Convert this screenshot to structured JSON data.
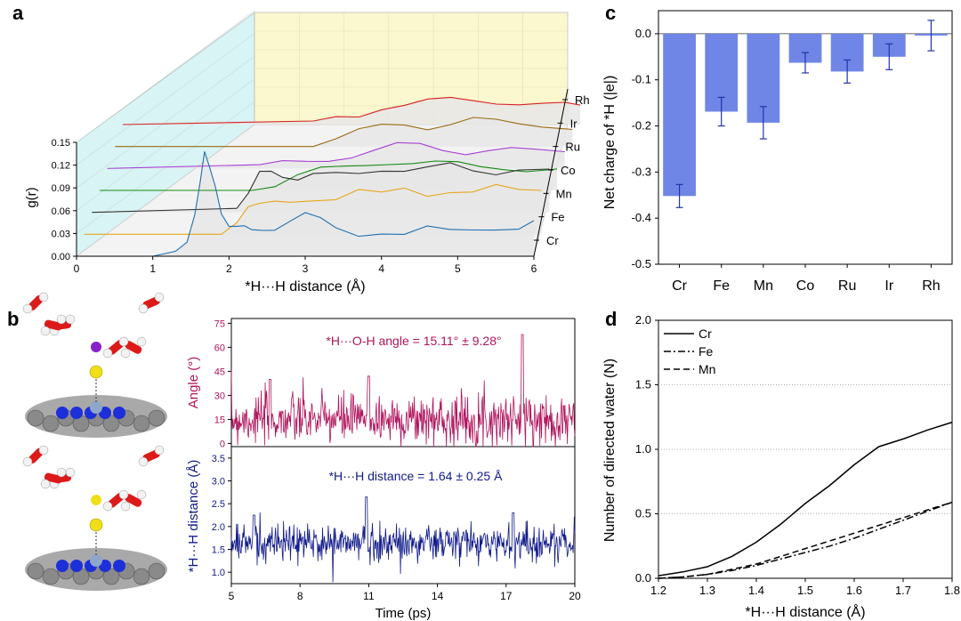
{
  "panel_letters": {
    "a": "a",
    "b": "b",
    "c": "c",
    "d": "d"
  },
  "colors": {
    "Cr": "#1f6fb0",
    "Fe": "#e6a61c",
    "Mn": "#333333",
    "Co": "#138a13",
    "Ru": "#a83fd6",
    "Ir": "#9a6a10",
    "Rh": "#d81f1f",
    "bar": "#6f86e6",
    "angle": "#b0145c",
    "hh": "#101a8a",
    "wall_side": "#d8f4f4",
    "wall_back": "#fbf7cf"
  },
  "chart_data": [
    {
      "id": "a",
      "type": "line",
      "ylabel": "g(r)",
      "xlabel": "*H···H distance (Å)",
      "x_ticks": [
        "0",
        "1",
        "2",
        "3",
        "4",
        "5",
        "6"
      ],
      "y_ticks": [
        "0.00",
        "0.03",
        "0.06",
        "0.09",
        "0.12",
        "0.15"
      ],
      "xlim": [
        0,
        6
      ],
      "ylim": [
        0,
        0.15
      ],
      "depth_categories": [
        "Cr",
        "Fe",
        "Mn",
        "Co",
        "Ru",
        "Ir",
        "Rh"
      ],
      "series": [
        {
          "name": "Cr",
          "x": [
            0,
            1.0,
            1.3,
            1.45,
            1.55,
            1.62,
            1.68,
            1.75,
            1.82,
            1.9,
            2.0,
            2.1,
            2.2,
            2.3,
            2.45,
            2.6,
            2.8,
            3.0,
            3.2,
            3.4,
            3.7,
            4.0,
            4.3,
            4.6,
            4.9,
            5.2,
            5.5,
            5.8,
            6.0
          ],
          "y": [
            0,
            0,
            0.002,
            0.02,
            0.06,
            0.1,
            0.135,
            0.11,
            0.09,
            0.06,
            0.045,
            0.04,
            0.035,
            0.03,
            0.035,
            0.04,
            0.05,
            0.055,
            0.045,
            0.035,
            0.03,
            0.035,
            0.03,
            0.035,
            0.03,
            0.035,
            0.04,
            0.04,
            0.045
          ]
        },
        {
          "name": "Fe",
          "x": [
            0,
            1.8,
            2.0,
            2.15,
            2.3,
            2.5,
            2.7,
            3.0,
            3.3,
            3.6,
            3.9,
            4.2,
            4.5,
            4.8,
            5.1,
            5.4,
            5.7,
            6.0
          ],
          "y": [
            0,
            0,
            0.02,
            0.035,
            0.035,
            0.04,
            0.045,
            0.05,
            0.048,
            0.055,
            0.05,
            0.06,
            0.055,
            0.06,
            0.055,
            0.06,
            0.055,
            0.06
          ]
        },
        {
          "name": "Mn",
          "x": [
            0,
            1.9,
            2.05,
            2.2,
            2.35,
            2.5,
            2.7,
            2.9,
            3.2,
            3.5,
            3.8,
            4.1,
            4.4,
            4.7,
            5.0,
            5.3,
            5.6,
            6.0
          ],
          "y": [
            0,
            0,
            0.02,
            0.055,
            0.06,
            0.05,
            0.04,
            0.045,
            0.05,
            0.055,
            0.06,
            0.055,
            0.055,
            0.06,
            0.055,
            0.055,
            0.06,
            0.055
          ]
        },
        {
          "name": "Co",
          "x": [
            0,
            2.0,
            2.3,
            2.6,
            2.9,
            3.2,
            3.5,
            3.8,
            4.1,
            4.4,
            4.7,
            5.0,
            5.3,
            5.6,
            6.0
          ],
          "y": [
            0,
            0,
            0.01,
            0.02,
            0.025,
            0.028,
            0.035,
            0.04,
            0.038,
            0.035,
            0.032,
            0.03,
            0.032,
            0.03,
            0.028
          ]
        },
        {
          "name": "Ru",
          "x": [
            0,
            2.0,
            2.3,
            2.6,
            2.9,
            3.2,
            3.5,
            3.8,
            4.1,
            4.4,
            4.7,
            5.0,
            5.3,
            5.6,
            6.0
          ],
          "y": [
            0,
            0,
            0.005,
            0.01,
            0.015,
            0.018,
            0.022,
            0.028,
            0.03,
            0.027,
            0.024,
            0.025,
            0.023,
            0.02,
            0.022
          ]
        },
        {
          "name": "Ir",
          "x": [
            0,
            2.3,
            2.6,
            2.9,
            3.2,
            3.5,
            3.8,
            4.1,
            4.4,
            4.7,
            5.0,
            5.3,
            5.6,
            6.0
          ],
          "y": [
            0,
            0,
            0.005,
            0.01,
            0.018,
            0.025,
            0.03,
            0.028,
            0.032,
            0.035,
            0.03,
            0.028,
            0.03,
            0.028
          ]
        },
        {
          "name": "Rh",
          "x": [
            0,
            2.5,
            2.8,
            3.1,
            3.4,
            3.7,
            4.0,
            4.3,
            4.6,
            4.9,
            5.2,
            5.5,
            5.8,
            6.0
          ],
          "y": [
            0,
            0,
            0.005,
            0.01,
            0.025,
            0.03,
            0.032,
            0.03,
            0.028,
            0.03,
            0.032,
            0.03,
            0.025,
            0.02
          ]
        }
      ]
    },
    {
      "id": "b_angle",
      "type": "line",
      "ylabel": "Angle (°)",
      "annotation": "*H···O-H angle = 15.11° ± 9.28°",
      "ylim": [
        -2,
        78
      ],
      "y_ticks": [
        "0",
        "15",
        "30",
        "45",
        "60",
        "75"
      ],
      "xlim": [
        5,
        20
      ],
      "mean": 15.11,
      "std": 9.28,
      "peaks": [
        {
          "x": 17.7,
          "y": 68
        },
        {
          "x": 11.0,
          "y": 42
        },
        {
          "x": 6.7,
          "y": 40
        }
      ],
      "n_points": 600
    },
    {
      "id": "b_distance",
      "type": "line",
      "ylabel": "*H···H distance (Å)",
      "xlabel": "Time (ps)",
      "annotation": "*H···H distance = 1.64 ± 0.25 Å",
      "ylim": [
        0.75,
        3.75
      ],
      "y_ticks": [
        "1.0",
        "1.5",
        "2.0",
        "2.5",
        "3.0",
        "3.5"
      ],
      "x_ticks": [
        "5",
        "8",
        "11",
        "14",
        "17",
        "20"
      ],
      "xlim": [
        5,
        20
      ],
      "mean": 1.64,
      "std": 0.25,
      "peaks": [
        {
          "x": 10.9,
          "y": 2.65
        },
        {
          "x": 6.0,
          "y": 2.25
        },
        {
          "x": 17.3,
          "y": 2.3
        }
      ],
      "n_points": 600
    },
    {
      "id": "c",
      "type": "bar",
      "ylabel": "Net charge of *H (|e|)",
      "categories": [
        "Cr",
        "Fe",
        "Mn",
        "Co",
        "Ru",
        "Ir",
        "Rh"
      ],
      "values": [
        -0.352,
        -0.169,
        -0.193,
        -0.063,
        -0.082,
        -0.05,
        -0.004
      ],
      "errors": [
        0.025,
        0.031,
        0.035,
        0.022,
        0.025,
        0.028,
        0.033
      ],
      "ylim": [
        -0.5,
        0.05
      ],
      "y_ticks": [
        "0.0",
        "-0.1",
        "-0.2",
        "-0.3",
        "-0.4",
        "-0.5"
      ]
    },
    {
      "id": "d",
      "type": "line",
      "ylabel": "Number of directed water (N)",
      "xlabel": "*H···H distance (Å)",
      "xlim": [
        1.2,
        1.8
      ],
      "ylim": [
        0,
        2.0
      ],
      "x_ticks": [
        "1.2",
        "1.3",
        "1.4",
        "1.5",
        "1.6",
        "1.7",
        "1.8"
      ],
      "y_ticks": [
        "0.0",
        "0.5",
        "1.0",
        "1.5",
        "2.0"
      ],
      "grid": "dotted horizontal",
      "legend_position": "top-left",
      "series": [
        {
          "name": "Cr",
          "dash": "solid",
          "x": [
            1.2,
            1.25,
            1.3,
            1.35,
            1.4,
            1.45,
            1.5,
            1.55,
            1.6,
            1.65,
            1.7,
            1.75,
            1.8
          ],
          "y": [
            0.02,
            0.05,
            0.09,
            0.17,
            0.28,
            0.42,
            0.58,
            0.72,
            0.88,
            1.02,
            1.08,
            1.15,
            1.21
          ]
        },
        {
          "name": "Fe",
          "dash": "dashdot",
          "x": [
            1.2,
            1.25,
            1.3,
            1.35,
            1.4,
            1.45,
            1.5,
            1.55,
            1.6,
            1.65,
            1.7,
            1.75,
            1.8
          ],
          "y": [
            0.0,
            0.01,
            0.03,
            0.06,
            0.1,
            0.15,
            0.2,
            0.25,
            0.31,
            0.38,
            0.45,
            0.52,
            0.59
          ]
        },
        {
          "name": "Mn",
          "dash": "dashed",
          "x": [
            1.2,
            1.25,
            1.3,
            1.35,
            1.4,
            1.45,
            1.5,
            1.55,
            1.6,
            1.65,
            1.7,
            1.75,
            1.8
          ],
          "y": [
            0.0,
            0.01,
            0.03,
            0.07,
            0.11,
            0.17,
            0.23,
            0.29,
            0.35,
            0.41,
            0.47,
            0.53,
            0.59
          ]
        }
      ]
    }
  ]
}
